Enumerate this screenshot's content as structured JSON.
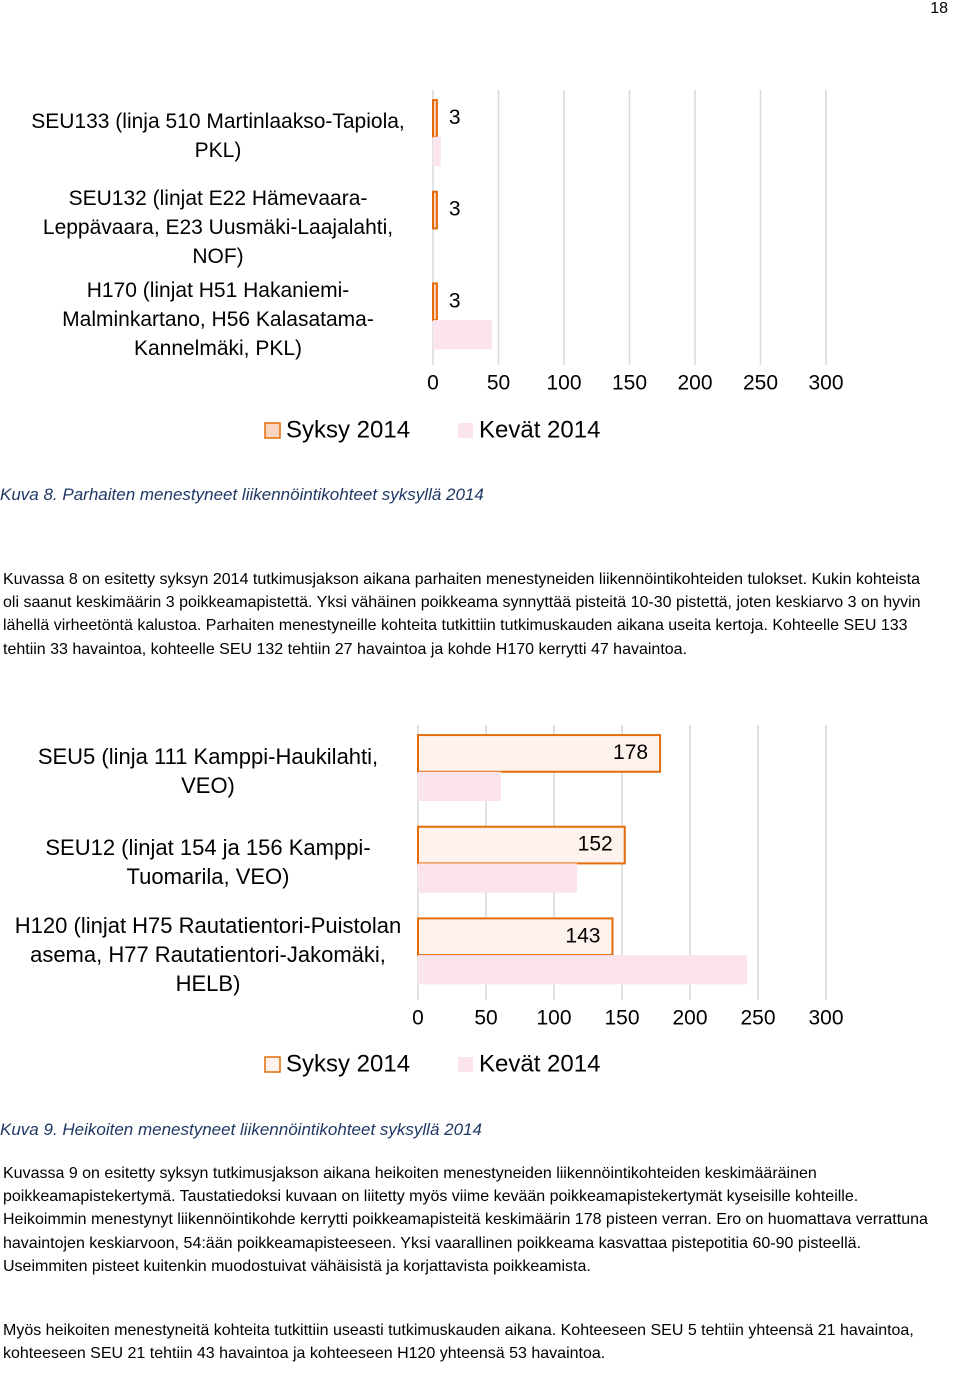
{
  "page_number": "18",
  "chart_data": [
    {
      "type": "bar",
      "orientation": "horizontal",
      "categories": [
        "SEU133 (linja 510 Martinlaakso-Tapiola, PKL)",
        "SEU132 (linjat E22 Hämevaara-Leppävaara, E23 Uusmäki-Laajalahti, NOF)",
        "H170 (linjat H51 Hakaniemi-Malminkartano, H56 Kalasatama-Kannelmäki, PKL)"
      ],
      "series": [
        {
          "name": "Syksy 2014",
          "color": "#fbd4bf",
          "edgecolor": "#e46c0a",
          "values": [
            3,
            3,
            3
          ],
          "data_labels": "outside_end"
        },
        {
          "name": "Kevät 2014",
          "color": "#fce4ef",
          "values": [
            6,
            0,
            45
          ]
        }
      ],
      "xlim": [
        0,
        300
      ],
      "xticks": [
        0,
        50,
        100,
        150,
        200,
        250,
        300
      ],
      "grid": true,
      "legend": "bottom"
    },
    {
      "type": "bar",
      "orientation": "horizontal",
      "categories": [
        "SEU5 (linja 111 Kamppi-Haukilahti, VEO)",
        "SEU12 (linjat 154 ja 156 Kamppi-Tuomarila, VEO)",
        "H120 (linjat H75 Rautatientori-Puistolan asema, H77 Rautatientori-Jakomäki, HELB)"
      ],
      "series": [
        {
          "name": "Syksy 2014",
          "color": "#fef3ec",
          "edgecolor": "#e46c0a",
          "values": [
            178,
            152,
            143
          ],
          "data_labels": "inside_end"
        },
        {
          "name": "Kevät 2014",
          "color": "#fce4ef",
          "values": [
            61,
            117,
            242
          ]
        }
      ],
      "xlim": [
        0,
        300
      ],
      "xticks": [
        0,
        50,
        100,
        150,
        200,
        250,
        300
      ],
      "grid": true,
      "legend": "bottom"
    }
  ],
  "captions": [
    "Kuva 8. Parhaiten menestyneet liikennöintikohteet syksyllä 2014",
    "Kuva 9. Heikoiten menestyneet liikennöintikohteet syksyllä 2014"
  ],
  "paragraphs": [
    "Kuvassa 8 on esitetty syksyn 2014 tutkimusjakson aikana parhaiten menestyneiden liikennöintikohteiden tulokset. Kukin kohteista oli saanut keskimäärin 3 poikkeamapistettä. Yksi vähäinen poikkeama synnyttää pisteitä 10-30 pistettä, joten keskiarvo 3 on hyvin lähellä virheetöntä kalustoa. Parhaiten menestyneille kohteita tutkittiin tutkimuskauden aikana useita kertoja. Kohteelle SEU 133 tehtiin 33 havaintoa, kohteelle SEU 132 tehtiin 27 havaintoa ja kohde H170 kerrytti 47 havaintoa.",
    "Kuvassa 9 on esitetty syksyn tutkimusjakson aikana heikoiten menestyneiden liikennöintikohteiden keskimääräinen poikkeamapistekertymä. Taustatiedoksi kuvaan on liitetty myös viime kevään poikkeamapistekertymät kyseisille kohteille. Heikoimmin menestynyt liikennöintikohde kerrytti poikkeamapisteitä keskimäärin 178 pisteen verran. Ero on huomattava verrattuna havaintojen keskiarvoon, 54:ään poikkeamapisteeseen. Yksi vaarallinen poikkeama kasvattaa pistepotitia 60-90 pisteellä. Useimmiten pisteet kuitenkin muodostuivat vähäisistä ja korjattavista poikkeamista.",
    "Myös heikoiten menestyneitä kohteita tutkittiin useasti tutkimuskauden aikana. Kohteeseen SEU 5 tehtiin yhteensä 21 havaintoa, kohteeseen SEU 21 tehtiin 43 havaintoa ja kohteeseen H120 yhteensä 53 havaintoa."
  ]
}
